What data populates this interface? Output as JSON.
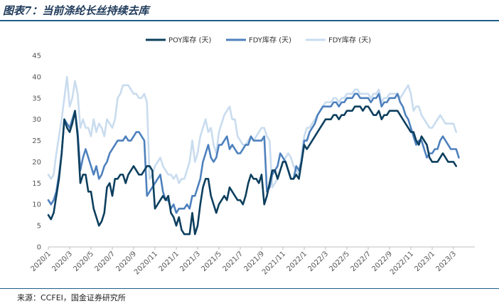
{
  "title": "图表7：当前涤纶长丝持续去库",
  "source": "来源：CCFEI，国金证券研究所",
  "chart_data": {
    "type": "line",
    "title": "",
    "xlabel": "",
    "ylabel": "",
    "ylim": [
      0,
      45
    ],
    "yticks": [
      0,
      5,
      10,
      15,
      20,
      25,
      30,
      35,
      40,
      45
    ],
    "x_tick_labels": [
      "2020/1",
      "2020/3",
      "2020/5",
      "2020/7",
      "2020/9",
      "2020/11",
      "2021/1",
      "2021/3",
      "2021/5",
      "2021/7",
      "2021/9",
      "2021/11",
      "2022/1",
      "2022/3",
      "2022/5",
      "2022/7",
      "2022/9",
      "2022/11",
      "2023/1",
      "2023/3"
    ],
    "x_start_month": "2020/1",
    "samples_per_month": 4,
    "grid": false,
    "legend_position": "top",
    "series": [
      {
        "name": "POY库存 (天)",
        "color": "#0d3f5e",
        "values": [
          7.5,
          6.5,
          8,
          12,
          16,
          22,
          30,
          28,
          27,
          29,
          32,
          26,
          15,
          17,
          17,
          13,
          13,
          9,
          7,
          5,
          6,
          8,
          14,
          15,
          12,
          16,
          16,
          17,
          17,
          15,
          17,
          18,
          19,
          18,
          17,
          17,
          18,
          19,
          19,
          18,
          9,
          10,
          11,
          12,
          11,
          12,
          8,
          7,
          5,
          7,
          4,
          3,
          3,
          3,
          8,
          3,
          5,
          10,
          14,
          16,
          16,
          12,
          10,
          8,
          10,
          11,
          12,
          11,
          14,
          13,
          12,
          11,
          11,
          10,
          12,
          15,
          17,
          16,
          16,
          15,
          17,
          10,
          12,
          15,
          18,
          18,
          16,
          18,
          20,
          20,
          18,
          16,
          16,
          17,
          16,
          20,
          24,
          23,
          24,
          25,
          26,
          27,
          28,
          29,
          30,
          30,
          30,
          31,
          31,
          30,
          31,
          31,
          32,
          32,
          32,
          33,
          33,
          33,
          32,
          33,
          33,
          32,
          31,
          31,
          32,
          30,
          31,
          31,
          32,
          32,
          32,
          32,
          31,
          30,
          29,
          28,
          27,
          27,
          25,
          24,
          26,
          25,
          24,
          21,
          20,
          20,
          20,
          21,
          22,
          21,
          20,
          20,
          20,
          19
        ]
      },
      {
        "name": "FDY库存 (天)",
        "color": "#4e81bd",
        "values": [
          11,
          10,
          11,
          13,
          17,
          22,
          30,
          29,
          28,
          30,
          32,
          27,
          18,
          21,
          23,
          21,
          19,
          17,
          19,
          16,
          17,
          19,
          20,
          22,
          23,
          24,
          25,
          25,
          25,
          26,
          25,
          25,
          26,
          27,
          27,
          26,
          25,
          12,
          13,
          14,
          15,
          16,
          17,
          13,
          11,
          11,
          9,
          10,
          8,
          9,
          9,
          9,
          10,
          9,
          12,
          12,
          14,
          16,
          20,
          22,
          24,
          21,
          20,
          21,
          24,
          24,
          25,
          26,
          23,
          24,
          23,
          22,
          22,
          23,
          24,
          24,
          26,
          25,
          25,
          25,
          25,
          26,
          13,
          14,
          17,
          18,
          19,
          22,
          21,
          20,
          18,
          16,
          16,
          19,
          18,
          20,
          25,
          25,
          27,
          28,
          29,
          31,
          32,
          33,
          33,
          33,
          33,
          34,
          34,
          33,
          34,
          34,
          35,
          35,
          35,
          36,
          36,
          35,
          35,
          35,
          35,
          34,
          35,
          35,
          36,
          33,
          34,
          34,
          35,
          35,
          35,
          36,
          34,
          33,
          31,
          30,
          28,
          26,
          24,
          25,
          25,
          23,
          21,
          22,
          22,
          23,
          23,
          25,
          26,
          25,
          24,
          23,
          23,
          23,
          21
        ]
      },
      {
        "name": "FDY库存 (天)",
        "color": "#c9dcef",
        "values": [
          17,
          16,
          17,
          22,
          26,
          30,
          35,
          40,
          33,
          35,
          39,
          36,
          28,
          30,
          28,
          28,
          26,
          30,
          27,
          29,
          28,
          26,
          30,
          29,
          28,
          30,
          35,
          36,
          38,
          38,
          38,
          37,
          36,
          36,
          35,
          35,
          36,
          34,
          16,
          17,
          19,
          20,
          21,
          19,
          18,
          17,
          17,
          16,
          17,
          15,
          16,
          16,
          18,
          20,
          25,
          20,
          22,
          26,
          28,
          30,
          27,
          28,
          24,
          22,
          27,
          29,
          31,
          32,
          33,
          30,
          30,
          26,
          25,
          24,
          24,
          25,
          26,
          25,
          26,
          27,
          28,
          28,
          26,
          25,
          14,
          15,
          16,
          18,
          20,
          21,
          22,
          21,
          19,
          18,
          17,
          22,
          26,
          28,
          28,
          29,
          30,
          31,
          32,
          33,
          34,
          34,
          34,
          35,
          35,
          34,
          35,
          35,
          36,
          36,
          36,
          37,
          37,
          36,
          36,
          36,
          36,
          35,
          36,
          36,
          37,
          34,
          35,
          35,
          36,
          36,
          36,
          36,
          35,
          36,
          37,
          38,
          36,
          32,
          33,
          33,
          31,
          30,
          29,
          28,
          28,
          29,
          30,
          31,
          30,
          29,
          29,
          29,
          29,
          27
        ]
      }
    ]
  }
}
